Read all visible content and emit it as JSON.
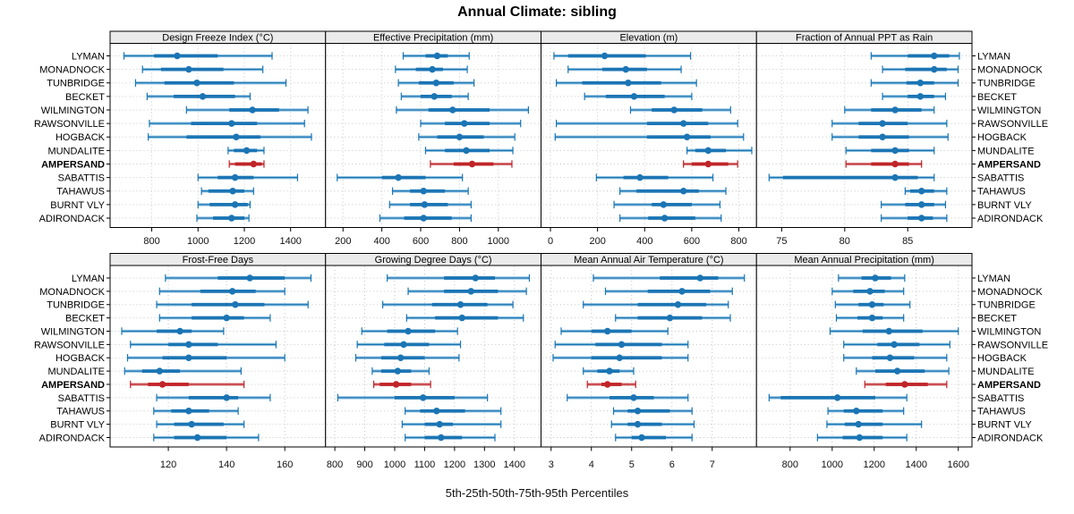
{
  "title": "Annual Climate: sibling",
  "caption": "5th-25th-50th-75th-95th Percentiles",
  "highlight_site": "AMPERSAND",
  "colors": {
    "series_blue": "#1b75b4",
    "series_blue_light": "#93c4e0",
    "series_red": "#c02428",
    "series_red_light": "#dd9a9c",
    "strip_bg": "#ebebeb",
    "grid": "#c6c6c6",
    "border": "#000000"
  },
  "chart_data": {
    "type": "dotplot-percentiles",
    "percentile_levels": [
      5,
      25,
      50,
      75,
      95
    ],
    "grid": "dotted",
    "sites": [
      "LYMAN",
      "MONADNOCK",
      "TUNBRIDGE",
      "BECKET",
      "WILMINGTON",
      "RAWSONVILLE",
      "HOGBACK",
      "MUNDALITE",
      "AMPERSAND",
      "SABATTIS",
      "TAHAWUS",
      "BURNT VLY",
      "ADIRONDACK"
    ],
    "panels": [
      {
        "title": "Design Freeze Index (°C)",
        "row": 0,
        "col": 0,
        "ticks": [
          800,
          1000,
          1200,
          1400
        ],
        "xlim": [
          620,
          1551
        ],
        "values": [
          [
            680,
            810,
            910,
            1085,
            1320
          ],
          [
            760,
            840,
            960,
            1110,
            1280
          ],
          [
            730,
            855,
            995,
            1155,
            1380
          ],
          [
            780,
            895,
            1020,
            1160,
            1225
          ],
          [
            950,
            1135,
            1235,
            1350,
            1475
          ],
          [
            790,
            970,
            1145,
            1255,
            1460
          ],
          [
            785,
            950,
            1165,
            1270,
            1490
          ],
          [
            1130,
            1155,
            1210,
            1255,
            1285
          ],
          [
            1135,
            1160,
            1240,
            1275,
            1285
          ],
          [
            1000,
            1085,
            1160,
            1240,
            1430
          ],
          [
            1015,
            1045,
            1150,
            1200,
            1240
          ],
          [
            1000,
            1050,
            1160,
            1215,
            1225
          ],
          [
            995,
            1065,
            1145,
            1200,
            1220
          ]
        ]
      },
      {
        "title": "Effective Precipitation (mm)",
        "row": 0,
        "col": 1,
        "ticks": [
          200,
          400,
          600,
          800,
          1000
        ],
        "xlim": [
          110,
          1220
        ],
        "values": [
          [
            510,
            625,
            685,
            740,
            850
          ],
          [
            470,
            575,
            660,
            715,
            840
          ],
          [
            485,
            590,
            680,
            770,
            875
          ],
          [
            500,
            600,
            670,
            760,
            845
          ],
          [
            475,
            640,
            765,
            955,
            1155
          ],
          [
            600,
            725,
            825,
            955,
            1115
          ],
          [
            590,
            685,
            800,
            925,
            1085
          ],
          [
            625,
            725,
            835,
            955,
            1075
          ],
          [
            650,
            770,
            865,
            975,
            1070
          ],
          [
            170,
            400,
            485,
            625,
            815
          ],
          [
            455,
            545,
            615,
            725,
            845
          ],
          [
            440,
            545,
            620,
            740,
            860
          ],
          [
            390,
            515,
            615,
            760,
            860
          ]
        ]
      },
      {
        "title": "Elevation (m)",
        "row": 0,
        "col": 2,
        "ticks": [
          0,
          200,
          400,
          600,
          800
        ],
        "xlim": [
          -40,
          875
        ],
        "values": [
          [
            15,
            75,
            230,
            405,
            595
          ],
          [
            75,
            220,
            320,
            410,
            555
          ],
          [
            25,
            135,
            330,
            470,
            620
          ],
          [
            145,
            235,
            355,
            485,
            600
          ],
          [
            340,
            430,
            525,
            645,
            765
          ],
          [
            25,
            410,
            565,
            670,
            795
          ],
          [
            20,
            410,
            580,
            680,
            820
          ],
          [
            580,
            615,
            670,
            745,
            855
          ],
          [
            565,
            600,
            670,
            755,
            795
          ],
          [
            195,
            310,
            380,
            500,
            690
          ],
          [
            295,
            365,
            565,
            630,
            745
          ],
          [
            270,
            430,
            480,
            600,
            720
          ],
          [
            295,
            415,
            485,
            615,
            725
          ]
        ]
      },
      {
        "title": "Fraction of Annual PPT as Rain",
        "row": 0,
        "col": 3,
        "ticks": [
          75,
          80,
          85
        ],
        "xlim": [
          73,
          90.1
        ],
        "values": [
          [
            82.1,
            85.0,
            87.1,
            88.3,
            89.1
          ],
          [
            83.0,
            84.8,
            87.1,
            88.1,
            89.0
          ],
          [
            82.1,
            84.9,
            86.0,
            87.1,
            89.0
          ],
          [
            83.0,
            85.0,
            86.0,
            87.1,
            88.0
          ],
          [
            80.0,
            82.1,
            84.0,
            86.1,
            87.1
          ],
          [
            79.0,
            81.1,
            83.0,
            85.0,
            88.1
          ],
          [
            79.0,
            81.1,
            83.0,
            85.1,
            88.2
          ],
          [
            80.1,
            82.1,
            84.0,
            85.1,
            87.1
          ],
          [
            80.1,
            82.1,
            84.0,
            85.1,
            86.1
          ],
          [
            74.0,
            75.1,
            84.0,
            85.8,
            87.1
          ],
          [
            84.8,
            85.2,
            86.1,
            87.1,
            88.1
          ],
          [
            82.9,
            84.8,
            86.1,
            87.1,
            88.0
          ],
          [
            82.9,
            85.0,
            86.1,
            87.0,
            88.1
          ]
        ]
      },
      {
        "title": "Frost-Free Days",
        "row": 1,
        "col": 0,
        "ticks": [
          120,
          140,
          160
        ],
        "xlim": [
          100,
          174
        ],
        "values": [
          [
            119,
            137,
            148,
            160,
            169
          ],
          [
            117,
            131,
            142,
            150,
            160
          ],
          [
            116,
            128,
            143,
            153,
            168
          ],
          [
            117,
            128,
            140,
            146,
            155
          ],
          [
            104,
            116,
            124,
            128,
            139
          ],
          [
            107,
            120,
            127,
            137,
            157
          ],
          [
            106,
            118,
            127,
            140,
            160
          ],
          [
            105,
            111,
            117,
            124,
            145
          ],
          [
            107,
            113,
            118,
            127,
            146
          ],
          [
            116,
            127,
            140,
            144,
            155
          ],
          [
            115,
            121,
            127,
            134,
            144
          ],
          [
            116,
            122,
            128,
            139,
            146
          ],
          [
            115,
            122,
            130,
            140,
            151
          ]
        ]
      },
      {
        "title": "Growing Degree Days (°C)",
        "row": 1,
        "col": 1,
        "ticks": [
          800,
          900,
          1000,
          1100,
          1200,
          1300,
          1400
        ],
        "xlim": [
          769,
          1489
        ],
        "values": [
          [
            975,
            1165,
            1270,
            1335,
            1450
          ],
          [
            1045,
            1165,
            1255,
            1345,
            1440
          ],
          [
            960,
            1125,
            1220,
            1310,
            1395
          ],
          [
            1040,
            1135,
            1225,
            1345,
            1430
          ],
          [
            890,
            975,
            1045,
            1135,
            1210
          ],
          [
            875,
            965,
            1030,
            1115,
            1220
          ],
          [
            870,
            955,
            1020,
            1100,
            1215
          ],
          [
            925,
            955,
            1010,
            1055,
            1115
          ],
          [
            930,
            950,
            1005,
            1055,
            1120
          ],
          [
            810,
            1000,
            1095,
            1200,
            1310
          ],
          [
            1035,
            1085,
            1140,
            1235,
            1355
          ],
          [
            1025,
            1100,
            1150,
            1195,
            1355
          ],
          [
            1035,
            1100,
            1155,
            1225,
            1335
          ]
        ]
      },
      {
        "title": "Mean Annual Air Temperature (°C)",
        "row": 1,
        "col": 2,
        "ticks": [
          3,
          4,
          5,
          6,
          7
        ],
        "xlim": [
          2.75,
          8.1
        ],
        "values": [
          [
            4.05,
            5.7,
            6.7,
            7.15,
            7.8
          ],
          [
            4.35,
            5.4,
            6.25,
            6.95,
            7.5
          ],
          [
            3.8,
            5.15,
            6.15,
            6.85,
            7.4
          ],
          [
            4.6,
            5.15,
            5.95,
            6.75,
            7.45
          ],
          [
            3.25,
            4.0,
            4.4,
            5.0,
            5.9
          ],
          [
            3.1,
            4.1,
            4.75,
            5.75,
            6.4
          ],
          [
            3.05,
            4.0,
            4.7,
            5.75,
            6.4
          ],
          [
            3.8,
            4.15,
            4.45,
            4.7,
            5.05
          ],
          [
            3.9,
            4.25,
            4.4,
            4.75,
            5.1
          ],
          [
            3.4,
            4.45,
            5.05,
            5.55,
            6.4
          ],
          [
            4.55,
            4.9,
            5.15,
            5.95,
            6.5
          ],
          [
            4.5,
            4.9,
            5.15,
            5.75,
            6.55
          ],
          [
            4.6,
            5.0,
            5.25,
            5.85,
            6.5
          ]
        ]
      },
      {
        "title": "Mean Annual Precipitation (mm)",
        "row": 1,
        "col": 3,
        "ticks": [
          800,
          1000,
          1200,
          1400,
          1600
        ],
        "xlim": [
          640,
          1665
        ],
        "values": [
          [
            1030,
            1140,
            1205,
            1280,
            1345
          ],
          [
            1000,
            1100,
            1180,
            1250,
            1340
          ],
          [
            1015,
            1125,
            1190,
            1245,
            1370
          ],
          [
            1020,
            1120,
            1190,
            1240,
            1340
          ],
          [
            990,
            1145,
            1270,
            1430,
            1600
          ],
          [
            1055,
            1215,
            1295,
            1415,
            1560
          ],
          [
            1055,
            1190,
            1275,
            1390,
            1545
          ],
          [
            1115,
            1205,
            1310,
            1440,
            1555
          ],
          [
            1155,
            1255,
            1345,
            1455,
            1545
          ],
          [
            700,
            755,
            1025,
            1205,
            1355
          ],
          [
            980,
            1055,
            1115,
            1240,
            1340
          ],
          [
            975,
            1060,
            1125,
            1240,
            1425
          ],
          [
            930,
            1050,
            1130,
            1240,
            1355
          ]
        ]
      }
    ]
  }
}
